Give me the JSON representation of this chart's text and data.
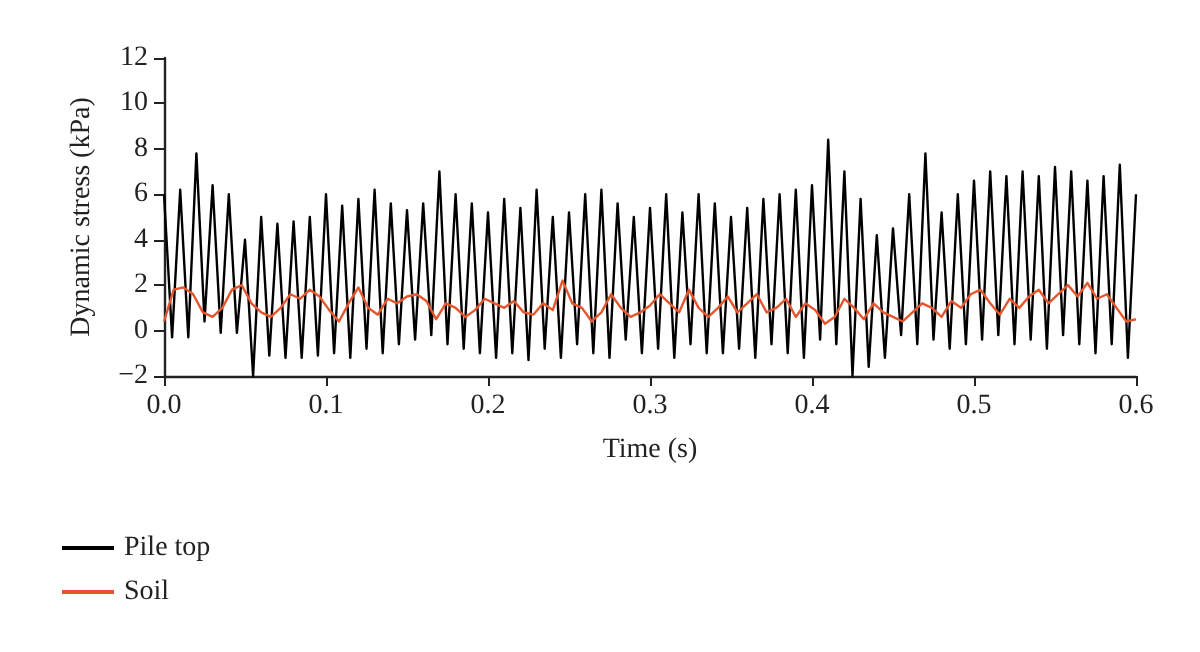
{
  "chart_data": {
    "type": "line",
    "xlabel": "Time (s)",
    "ylabel": "Dynamic stress (kPa)",
    "xlim": [
      0,
      0.6
    ],
    "ylim": [
      -2,
      12
    ],
    "xticks": [
      {
        "value": 0,
        "label": "0.0"
      },
      {
        "value": 0.1,
        "label": "0.1"
      },
      {
        "value": 0.2,
        "label": "0.2"
      },
      {
        "value": 0.3,
        "label": "0.3"
      },
      {
        "value": 0.4,
        "label": "0.4"
      },
      {
        "value": 0.5,
        "label": "0.5"
      },
      {
        "value": 0.6,
        "label": "0.6"
      }
    ],
    "yticks": [
      -2,
      0,
      2,
      4,
      6,
      8,
      10,
      12
    ],
    "grid": false,
    "legend": "bottom left",
    "marker": "none",
    "line_style": "solid",
    "series": [
      {
        "name": "Pile top",
        "color": "#000000",
        "x": [
          0,
          0.005,
          0.01,
          0.015,
          0.02,
          0.025,
          0.03,
          0.035,
          0.04,
          0.045,
          0.05,
          0.055,
          0.06,
          0.065,
          0.07,
          0.075,
          0.08,
          0.085,
          0.09,
          0.095,
          0.1,
          0.105,
          0.11,
          0.115,
          0.12,
          0.125,
          0.13,
          0.135,
          0.14,
          0.145,
          0.15,
          0.155,
          0.16,
          0.165,
          0.17,
          0.175,
          0.18,
          0.185,
          0.19,
          0.195,
          0.2,
          0.205,
          0.21,
          0.215,
          0.22,
          0.225,
          0.23,
          0.235,
          0.24,
          0.245,
          0.25,
          0.255,
          0.26,
          0.265,
          0.27,
          0.275,
          0.28,
          0.285,
          0.29,
          0.295,
          0.3,
          0.305,
          0.31,
          0.315,
          0.32,
          0.325,
          0.33,
          0.335,
          0.34,
          0.345,
          0.35,
          0.355,
          0.36,
          0.365,
          0.37,
          0.375,
          0.38,
          0.385,
          0.39,
          0.395,
          0.4,
          0.405,
          0.41,
          0.415,
          0.42,
          0.425,
          0.43,
          0.435,
          0.44,
          0.445,
          0.45,
          0.455,
          0.46,
          0.465,
          0.47,
          0.475,
          0.48,
          0.485,
          0.49,
          0.495,
          0.5,
          0.505,
          0.51,
          0.515,
          0.52,
          0.525,
          0.53,
          0.535,
          0.54,
          0.545,
          0.55,
          0.555,
          0.56,
          0.565,
          0.57,
          0.575,
          0.58,
          0.585,
          0.59,
          0.595,
          0.6
        ],
        "values": [
          6.0,
          -0.3,
          6.2,
          -0.3,
          7.8,
          0.4,
          6.4,
          -0.1,
          6.0,
          -0.1,
          4.0,
          -2.0,
          5.0,
          -1.1,
          4.7,
          -1.2,
          4.8,
          -1.2,
          5.0,
          -1.1,
          6.0,
          -1.0,
          5.5,
          -1.2,
          5.8,
          -0.8,
          6.2,
          -1.0,
          5.6,
          -0.6,
          5.3,
          -0.4,
          5.6,
          -0.2,
          7.0,
          -0.6,
          6.0,
          -0.8,
          5.6,
          -1.0,
          5.2,
          -1.2,
          5.8,
          -1.0,
          5.4,
          -1.3,
          6.2,
          -0.8,
          5.0,
          -1.2,
          5.2,
          -0.6,
          6.0,
          -1.0,
          6.2,
          -1.2,
          5.6,
          -0.4,
          5.0,
          -1.0,
          5.4,
          -0.8,
          6.0,
          -1.2,
          5.2,
          -0.6,
          6.0,
          -1.0,
          5.6,
          -1.0,
          5.0,
          -0.8,
          5.4,
          -1.2,
          5.8,
          -0.6,
          6.0,
          -1.0,
          6.2,
          -1.2,
          6.4,
          -0.4,
          8.4,
          -0.6,
          7.0,
          -2.0,
          5.8,
          -1.6,
          4.2,
          -1.2,
          4.5,
          -0.2,
          6.0,
          -0.6,
          7.8,
          -0.4,
          5.2,
          -0.8,
          6.0,
          -0.6,
          6.6,
          -0.4,
          7.0,
          -0.2,
          6.8,
          -0.6,
          7.0,
          -0.4,
          6.8,
          -0.8,
          7.2,
          -0.2,
          7.0,
          -0.6,
          6.6,
          -1.0,
          6.8,
          -0.6,
          7.3,
          -1.2,
          6.0
        ]
      },
      {
        "name": "Soil",
        "color": "#e4572e",
        "x": [
          0,
          0.006,
          0.012,
          0.018,
          0.024,
          0.03,
          0.036,
          0.042,
          0.048,
          0.054,
          0.06,
          0.066,
          0.072,
          0.078,
          0.084,
          0.09,
          0.096,
          0.102,
          0.108,
          0.114,
          0.12,
          0.126,
          0.132,
          0.138,
          0.144,
          0.15,
          0.156,
          0.162,
          0.168,
          0.174,
          0.18,
          0.186,
          0.192,
          0.198,
          0.204,
          0.21,
          0.216,
          0.222,
          0.228,
          0.234,
          0.24,
          0.246,
          0.252,
          0.258,
          0.264,
          0.27,
          0.276,
          0.282,
          0.288,
          0.294,
          0.3,
          0.306,
          0.312,
          0.318,
          0.324,
          0.33,
          0.336,
          0.342,
          0.348,
          0.354,
          0.36,
          0.366,
          0.372,
          0.378,
          0.384,
          0.39,
          0.396,
          0.402,
          0.408,
          0.414,
          0.42,
          0.426,
          0.432,
          0.438,
          0.444,
          0.45,
          0.456,
          0.462,
          0.468,
          0.474,
          0.48,
          0.486,
          0.492,
          0.498,
          0.504,
          0.51,
          0.516,
          0.522,
          0.528,
          0.534,
          0.54,
          0.546,
          0.552,
          0.558,
          0.564,
          0.57,
          0.576,
          0.582,
          0.588,
          0.594,
          0.6
        ],
        "values": [
          0.4,
          1.8,
          1.9,
          1.6,
          0.8,
          0.6,
          1.0,
          1.8,
          2.0,
          1.2,
          0.8,
          0.6,
          1.0,
          1.6,
          1.4,
          1.8,
          1.5,
          0.9,
          0.4,
          1.2,
          1.9,
          1.0,
          0.7,
          1.4,
          1.2,
          1.5,
          1.6,
          1.3,
          0.5,
          1.2,
          1.0,
          0.6,
          0.9,
          1.4,
          1.2,
          1.0,
          1.3,
          0.8,
          0.7,
          1.2,
          0.9,
          2.2,
          1.2,
          1.0,
          0.4,
          0.8,
          1.6,
          1.0,
          0.6,
          0.8,
          1.1,
          1.6,
          1.2,
          0.8,
          1.8,
          1.0,
          0.6,
          1.0,
          1.5,
          0.8,
          1.2,
          1.6,
          0.8,
          1.0,
          1.4,
          0.6,
          1.2,
          0.9,
          0.3,
          0.6,
          1.4,
          1.0,
          0.5,
          1.2,
          0.8,
          0.6,
          0.4,
          0.8,
          1.2,
          1.0,
          0.6,
          1.3,
          1.0,
          1.6,
          1.8,
          1.2,
          0.7,
          1.4,
          1.0,
          1.5,
          1.8,
          1.2,
          1.6,
          2.0,
          1.5,
          2.1,
          1.4,
          1.6,
          1.0,
          0.4,
          0.5
        ]
      }
    ]
  }
}
